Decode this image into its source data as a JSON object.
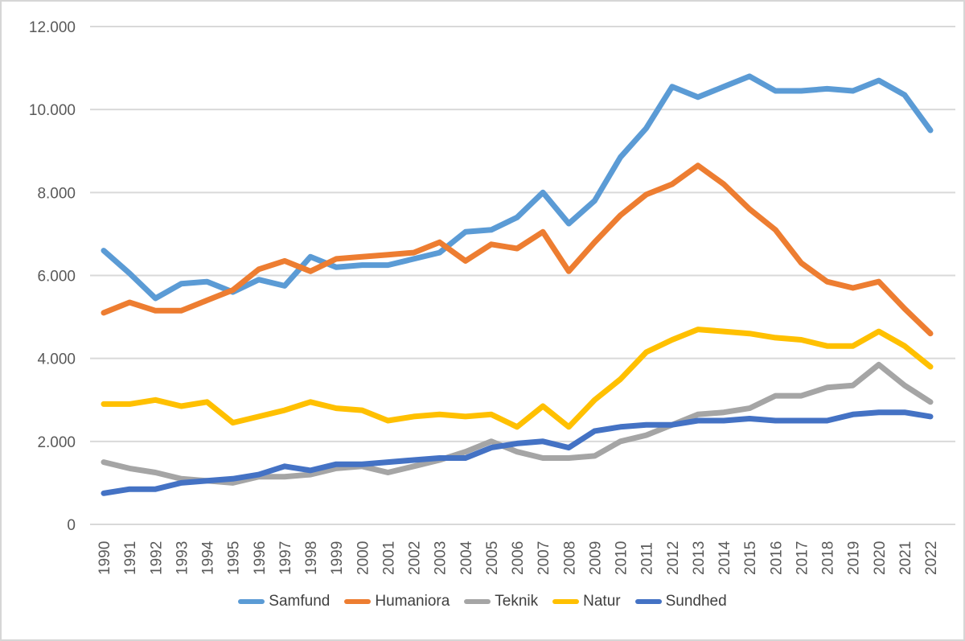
{
  "chart_data": {
    "type": "line",
    "title": "",
    "xlabel": "",
    "ylabel": "",
    "x_tick_labels": [
      "1990",
      "1991",
      "1992",
      "1993",
      "1994",
      "1995",
      "1996",
      "1997",
      "1998",
      "1999",
      "2000",
      "2001",
      "2002",
      "2003",
      "2004",
      "2005",
      "2006",
      "2007",
      "2008",
      "2009",
      "2010",
      "2011",
      "2012",
      "2013",
      "2014",
      "2015",
      "2016",
      "2017",
      "2018",
      "2019",
      "2020",
      "2021",
      "2022"
    ],
    "y_axis": {
      "min": 0,
      "max": 12000,
      "step": 2000,
      "tick_labels": [
        "0",
        "2.000",
        "4.000",
        "6.000",
        "8.000",
        "10.000",
        "12.000"
      ]
    },
    "grid": true,
    "legend_position": "bottom",
    "series": [
      {
        "name": "Samfund",
        "color": "#5B9BD5",
        "values": [
          6600,
          6050,
          5450,
          5800,
          5850,
          5600,
          5900,
          5750,
          6450,
          6200,
          6250,
          6250,
          6400,
          6550,
          7050,
          7100,
          7400,
          8000,
          7250,
          7800,
          8850,
          9550,
          10550,
          10300,
          10550,
          10800,
          10450,
          10450,
          10500,
          10450,
          10700,
          10350,
          9500
        ]
      },
      {
        "name": "Humaniora",
        "color": "#ED7D31",
        "values": [
          5100,
          5350,
          5150,
          5150,
          5400,
          5650,
          6150,
          6350,
          6100,
          6400,
          6450,
          6500,
          6550,
          6800,
          6350,
          6750,
          6650,
          7050,
          6100,
          6800,
          7450,
          7950,
          8200,
          8650,
          8200,
          7600,
          7100,
          6300,
          5850,
          5700,
          5850,
          5200,
          4600
        ]
      },
      {
        "name": "Teknik",
        "color": "#A5A5A5",
        "values": [
          1500,
          1350,
          1250,
          1100,
          1050,
          1000,
          1150,
          1150,
          1200,
          1350,
          1400,
          1250,
          1400,
          1550,
          1750,
          2000,
          1750,
          1600,
          1600,
          1650,
          2000,
          2150,
          2400,
          2650,
          2700,
          2800,
          3100,
          3100,
          3300,
          3350,
          3850,
          3350,
          2950
        ]
      },
      {
        "name": "Natur",
        "color": "#FFC000",
        "values": [
          2900,
          2900,
          3000,
          2850,
          2950,
          2450,
          2600,
          2750,
          2950,
          2800,
          2750,
          2500,
          2600,
          2650,
          2600,
          2650,
          2350,
          2850,
          2350,
          3000,
          3500,
          4150,
          4450,
          4700,
          4650,
          4600,
          4500,
          4450,
          4300,
          4300,
          4650,
          4300,
          3800
        ]
      },
      {
        "name": "Sundhed",
        "color": "#4472C4",
        "values": [
          750,
          850,
          850,
          1000,
          1050,
          1100,
          1200,
          1400,
          1300,
          1450,
          1450,
          1500,
          1550,
          1600,
          1600,
          1850,
          1950,
          2000,
          1850,
          2250,
          2350,
          2400,
          2400,
          2500,
          2500,
          2550,
          2500,
          2500,
          2500,
          2650,
          2700,
          2700,
          2600
        ]
      }
    ]
  },
  "colors": {
    "axis_text": "#595959",
    "legend_text": "#404040",
    "gridline": "#D9D9D9",
    "background": "#FFFFFF",
    "frame_border": "#D6D6D6"
  }
}
